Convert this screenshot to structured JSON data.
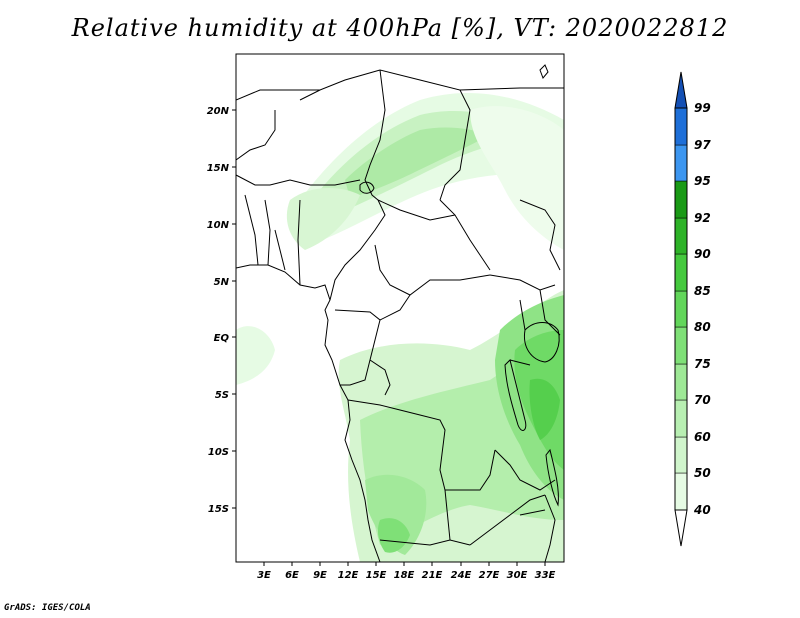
{
  "title": "Relative humidity at 400hPa [%], VT: 2020022812",
  "credit": "GrADS: IGES/COLA",
  "map": {
    "lon_range": [
      0,
      35
    ],
    "lat_range": [
      -20,
      25
    ],
    "lon_ticks": [
      "3E",
      "6E",
      "9E",
      "12E",
      "15E",
      "18E",
      "21E",
      "24E",
      "27E",
      "30E",
      "33E"
    ],
    "lat_ticks": [
      "20N",
      "15N",
      "10N",
      "5N",
      "EQ",
      "5S",
      "10S",
      "15S"
    ]
  },
  "colorbar": {
    "levels": [
      "40",
      "50",
      "60",
      "70",
      "75",
      "80",
      "85",
      "90",
      "92",
      "95",
      "97",
      "99"
    ],
    "colors": [
      "#ffffff",
      "#e6fbe4",
      "#d0f5cc",
      "#b8efb2",
      "#9ee896",
      "#7fe077",
      "#62d65a",
      "#45c93e",
      "#2eb328",
      "#1a9a16",
      "#3c96f0",
      "#1e6fd8",
      "#1450b4"
    ]
  },
  "chart_data": {
    "type": "heatmap",
    "title": "Relative humidity at 400hPa [%], VT: 2020022812",
    "x_ticks": [
      "3E",
      "6E",
      "9E",
      "12E",
      "15E",
      "18E",
      "21E",
      "24E",
      "27E",
      "30E",
      "33E"
    ],
    "y_ticks": [
      "20N",
      "15N",
      "10N",
      "5N",
      "EQ",
      "5S",
      "10S",
      "15S"
    ],
    "contour_levels": [
      40,
      50,
      60,
      70,
      75,
      80,
      85,
      90,
      92,
      95,
      97,
      99
    ]
  }
}
